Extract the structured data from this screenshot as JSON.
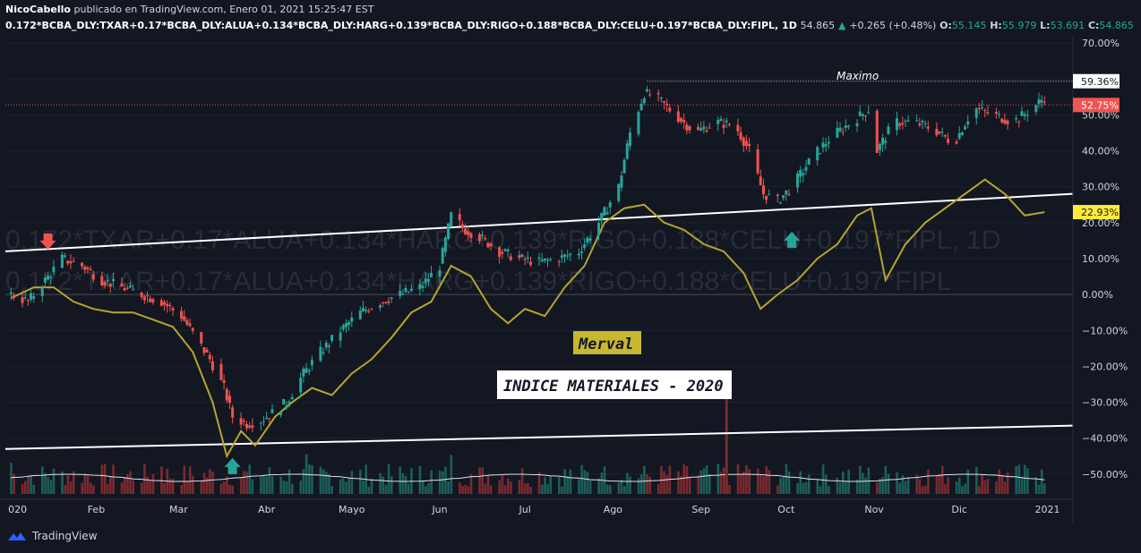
{
  "header": {
    "author": "NicoCabello",
    "published_text": "publicado en TradingView.com, Enero 01, 2021 15:25:47 EST",
    "symbol": "0.172*BCBA_DLY:TXAR+0.17*BCBA_DLY:ALUA+0.134*BCBA_DLY:HARG+0.139*BCBA_DLY:RIGO+0.188*BCBA_DLY:CELU+0.197*BCBA_DLY:FIPL, 1D",
    "last": "54.865",
    "change": "+0.265 (+0.48%)",
    "o_label": "O:",
    "o_value": "55.145",
    "h_label": "H:",
    "h_value": "55.979",
    "l_label": "L:",
    "l_value": "53.691",
    "c_label": "C:",
    "c_value": "54.865"
  },
  "watermark": {
    "line1": "0.172*TXAR+0.17*ALUA+0.134*HARG+0.139*RIGO+0.188*CELU+0.197*FIPL, 1D",
    "line2": "0.172*TXAR+0.17*ALUA+0.134*HARG+0.139*RIGO+0.188*CELU+0.197*FIPL"
  },
  "annotations": {
    "maximo": "Maximo",
    "merval": "Merval",
    "title_box": "INDICE MATERIALES - 2020"
  },
  "footer": {
    "brand": "TradingView"
  },
  "colors": {
    "up": "#26a69a",
    "down": "#ef5350",
    "merval": "#b5a52d",
    "volume_up": "#1b5e5a",
    "volume_down": "#7a2a2e",
    "merval_label_bg": "#c8b830",
    "last_price_bg": "#f05350"
  },
  "chart_data": {
    "type": "candlestick",
    "y_axis": {
      "min": -57,
      "max": 72,
      "unit": "%",
      "ticks": [
        70,
        60,
        50,
        40,
        30,
        20,
        10,
        0,
        -10,
        -20,
        -30,
        -40,
        -50
      ],
      "tick_labels": [
        "70.00%",
        "60.00%",
        "50.00%",
        "40.00%",
        "30.00%",
        "20.00%",
        "10.00%",
        "0.00%",
        "−10.00%",
        "−20.00%",
        "−30.00%",
        "−40.00%",
        "−50.00%"
      ]
    },
    "x_axis": {
      "range": [
        "2019-12-31",
        "2021-01-10"
      ],
      "ticks": [
        {
          "date": "2020-01-01",
          "label": "020"
        },
        {
          "date": "2020-02-01",
          "label": "Feb"
        },
        {
          "date": "2020-03-01",
          "label": "Mar"
        },
        {
          "date": "2020-04-01",
          "label": "Abr"
        },
        {
          "date": "2020-05-01",
          "label": "Mayo"
        },
        {
          "date": "2020-06-01",
          "label": "Jun"
        },
        {
          "date": "2020-07-01",
          "label": "Jul"
        },
        {
          "date": "2020-08-01",
          "label": "Ago"
        },
        {
          "date": "2020-09-01",
          "label": "Sep"
        },
        {
          "date": "2020-10-01",
          "label": "Oct"
        },
        {
          "date": "2020-11-01",
          "label": "Nov"
        },
        {
          "date": "2020-12-01",
          "label": "Dic"
        },
        {
          "date": "2021-01-01",
          "label": "2021"
        }
      ]
    },
    "price_labels": [
      {
        "value": 59.36,
        "label": "59.36%"
      },
      {
        "value": 52.75,
        "label": "52.75%"
      },
      {
        "value": 22.93,
        "label": "22.93%"
      }
    ],
    "index_path": [
      [
        "2020-01-02",
        0
      ],
      [
        "2020-01-08",
        -2
      ],
      [
        "2020-01-14",
        4
      ],
      [
        "2020-01-20",
        10
      ],
      [
        "2020-01-27",
        8
      ],
      [
        "2020-02-03",
        4
      ],
      [
        "2020-02-10",
        2
      ],
      [
        "2020-02-17",
        0
      ],
      [
        "2020-02-24",
        -2
      ],
      [
        "2020-03-02",
        -6
      ],
      [
        "2020-03-07",
        -12
      ],
      [
        "2020-03-12",
        -18
      ],
      [
        "2020-03-17",
        -26
      ],
      [
        "2020-03-20",
        -34
      ],
      [
        "2020-03-25",
        -36
      ],
      [
        "2020-03-30",
        -35
      ],
      [
        "2020-04-03",
        -33
      ],
      [
        "2020-04-08",
        -30
      ],
      [
        "2020-04-14",
        -22
      ],
      [
        "2020-04-20",
        -16
      ],
      [
        "2020-04-27",
        -10
      ],
      [
        "2020-05-04",
        -5
      ],
      [
        "2020-05-11",
        -2
      ],
      [
        "2020-05-18",
        0
      ],
      [
        "2020-05-25",
        2
      ],
      [
        "2020-06-01",
        8
      ],
      [
        "2020-06-05",
        22
      ],
      [
        "2020-06-10",
        18
      ],
      [
        "2020-06-15",
        16
      ],
      [
        "2020-06-22",
        12
      ],
      [
        "2020-06-29",
        10
      ],
      [
        "2020-07-06",
        9
      ],
      [
        "2020-07-13",
        10
      ],
      [
        "2020-07-20",
        12
      ],
      [
        "2020-07-27",
        20
      ],
      [
        "2020-08-03",
        30
      ],
      [
        "2020-08-07",
        45
      ],
      [
        "2020-08-12",
        56
      ],
      [
        "2020-08-16",
        55
      ],
      [
        "2020-08-23",
        50
      ],
      [
        "2020-08-30",
        45
      ],
      [
        "2020-09-06",
        48
      ],
      [
        "2020-09-13",
        47
      ],
      [
        "2020-09-18",
        40
      ],
      [
        "2020-09-23",
        28
      ],
      [
        "2020-09-28",
        26
      ],
      [
        "2020-10-03",
        30
      ],
      [
        "2020-10-10",
        38
      ],
      [
        "2020-10-17",
        44
      ],
      [
        "2020-10-24",
        48
      ],
      [
        "2020-10-31",
        52
      ],
      [
        "2020-11-02",
        40
      ],
      [
        "2020-11-08",
        48
      ],
      [
        "2020-11-15",
        48
      ],
      [
        "2020-11-22",
        46
      ],
      [
        "2020-11-29",
        42
      ],
      [
        "2020-12-06",
        52
      ],
      [
        "2020-12-13",
        50
      ],
      [
        "2020-12-20",
        48
      ],
      [
        "2020-12-27",
        52
      ],
      [
        "2020-12-31",
        54.9
      ]
    ],
    "merval_path": [
      [
        "2020-01-02",
        -1
      ],
      [
        "2020-01-10",
        2
      ],
      [
        "2020-01-17",
        2
      ],
      [
        "2020-01-24",
        -2
      ],
      [
        "2020-01-31",
        -4
      ],
      [
        "2020-02-07",
        -5
      ],
      [
        "2020-02-14",
        -5
      ],
      [
        "2020-02-21",
        -7
      ],
      [
        "2020-02-28",
        -9
      ],
      [
        "2020-03-06",
        -16
      ],
      [
        "2020-03-13",
        -30
      ],
      [
        "2020-03-18",
        -45
      ],
      [
        "2020-03-23",
        -38
      ],
      [
        "2020-03-28",
        -42
      ],
      [
        "2020-04-04",
        -34
      ],
      [
        "2020-04-10",
        -30
      ],
      [
        "2020-04-17",
        -26
      ],
      [
        "2020-04-24",
        -28
      ],
      [
        "2020-05-01",
        -22
      ],
      [
        "2020-05-08",
        -18
      ],
      [
        "2020-05-15",
        -12
      ],
      [
        "2020-05-22",
        -5
      ],
      [
        "2020-05-29",
        -2
      ],
      [
        "2020-06-05",
        8
      ],
      [
        "2020-06-12",
        5
      ],
      [
        "2020-06-19",
        -4
      ],
      [
        "2020-06-25",
        -8
      ],
      [
        "2020-07-01",
        -4
      ],
      [
        "2020-07-08",
        -6
      ],
      [
        "2020-07-15",
        2
      ],
      [
        "2020-07-22",
        8
      ],
      [
        "2020-07-29",
        20
      ],
      [
        "2020-08-05",
        24
      ],
      [
        "2020-08-12",
        25
      ],
      [
        "2020-08-19",
        20
      ],
      [
        "2020-08-26",
        18
      ],
      [
        "2020-09-02",
        14
      ],
      [
        "2020-09-09",
        12
      ],
      [
        "2020-09-16",
        6
      ],
      [
        "2020-09-22",
        -4
      ],
      [
        "2020-09-28",
        0
      ],
      [
        "2020-10-05",
        4
      ],
      [
        "2020-10-12",
        10
      ],
      [
        "2020-10-19",
        14
      ],
      [
        "2020-10-26",
        22
      ],
      [
        "2020-10-31",
        24
      ],
      [
        "2020-11-05",
        4
      ],
      [
        "2020-11-12",
        14
      ],
      [
        "2020-11-19",
        20
      ],
      [
        "2020-11-26",
        24
      ],
      [
        "2020-12-03",
        28
      ],
      [
        "2020-12-10",
        32
      ],
      [
        "2020-12-17",
        28
      ],
      [
        "2020-12-24",
        22
      ],
      [
        "2020-12-31",
        22.9
      ]
    ],
    "trendlines": [
      {
        "from": [
          "2019-12-31",
          12
        ],
        "to": [
          "2021-01-10",
          28
        ]
      },
      {
        "from": [
          "2019-12-31",
          -43
        ],
        "to": [
          "2021-01-10",
          -36.5
        ]
      }
    ],
    "maximo_line": {
      "value": 59.36,
      "from": "2020-08-13"
    },
    "last_price_line": {
      "value": 52.75
    },
    "signal_arrows": [
      {
        "type": "sell",
        "date": "2020-01-15",
        "value": 14
      },
      {
        "type": "buy",
        "date": "2020-03-20",
        "value": -47
      },
      {
        "type": "buy",
        "date": "2020-10-03",
        "value": 16
      }
    ]
  }
}
